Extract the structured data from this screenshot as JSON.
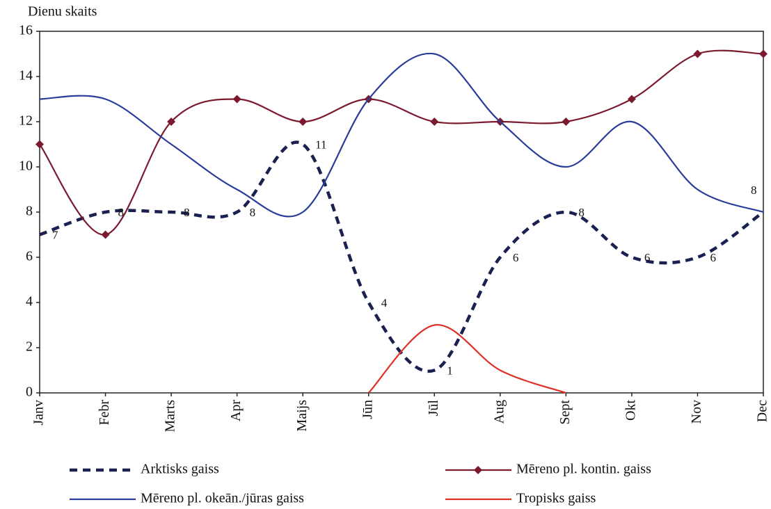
{
  "chart_data": {
    "type": "line",
    "y_label": "Dienu skaits",
    "categories": [
      "Janv",
      "Febr",
      "Marts",
      "Apr",
      "Maijs",
      "Jūn",
      "Jūl",
      "Aug",
      "Sept",
      "Okt",
      "Nov",
      "Dec"
    ],
    "ylim": [
      0,
      16
    ],
    "yticks": [
      0,
      2,
      4,
      6,
      8,
      10,
      12,
      14,
      16
    ],
    "grid": false,
    "series": [
      {
        "name": "Arktisks gaiss",
        "color": "#1a2150",
        "style": "dashed",
        "data_labels": true,
        "values": [
          7,
          8,
          8,
          8,
          11,
          4,
          1,
          6,
          8,
          6,
          6,
          8
        ]
      },
      {
        "name": "Mēreno pl. kontin. gaiss",
        "color": "#7b1a2e",
        "marker": "diamond",
        "values": [
          11,
          7,
          12,
          13,
          12,
          13,
          12,
          12,
          12,
          13,
          15,
          15
        ]
      },
      {
        "name": "Mēreno pl. okeān./jūras gaiss",
        "color": "#2a3c9a",
        "values": [
          13,
          13,
          11,
          9,
          8,
          13,
          15,
          12,
          10,
          12,
          9,
          8
        ]
      },
      {
        "name": "Tropisks gaiss",
        "color": "#e0302a",
        "values": [
          null,
          null,
          null,
          null,
          null,
          0,
          3,
          1,
          0,
          null,
          null,
          null
        ]
      }
    ]
  }
}
